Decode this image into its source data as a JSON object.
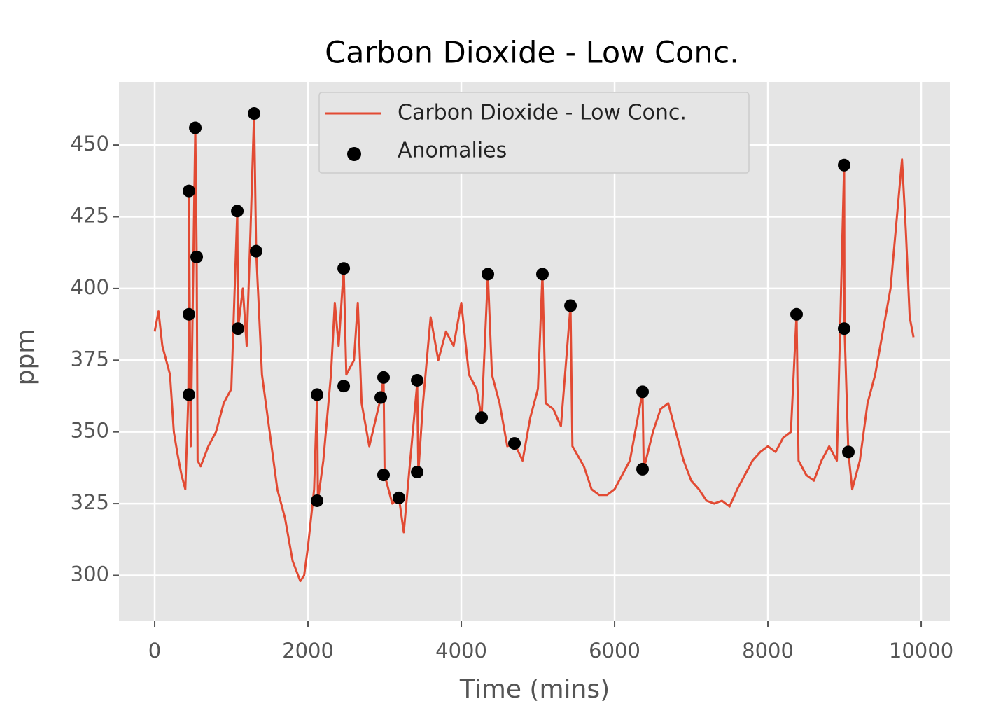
{
  "chart_data": {
    "type": "line",
    "title": "Carbon Dioxide - Low Conc.",
    "x_label": "Time (mins)",
    "y_label": "ppm",
    "xlim": [
      -466,
      10374
    ],
    "ylim": [
      284,
      472
    ],
    "xticks": [
      0,
      2000,
      4000,
      6000,
      8000,
      10000
    ],
    "yticks": [
      300,
      325,
      350,
      375,
      400,
      425,
      450
    ],
    "grid": true,
    "legend": "upper center",
    "series": [
      {
        "name": "Carbon Dioxide - Low Conc.",
        "type": "line",
        "color": "#E24A33",
        "x": [
          0,
          50,
          100,
          200,
          250,
          300,
          350,
          400,
          440,
          445,
          447,
          470,
          530,
          548,
          560,
          600,
          700,
          800,
          900,
          1000,
          1078,
          1087,
          1150,
          1200,
          1250,
          1297,
          1324,
          1400,
          1500,
          1600,
          1700,
          1800,
          1900,
          1950,
          2000,
          2080,
          2119,
          2130,
          2200,
          2300,
          2350,
          2400,
          2466,
          2500,
          2600,
          2650,
          2700,
          2800,
          2950,
          2986,
          3000,
          3100,
          3187,
          3250,
          3300,
          3425,
          3440,
          3500,
          3600,
          3700,
          3800,
          3900,
          4000,
          4100,
          4200,
          4265,
          4347,
          4400,
          4500,
          4600,
          4694,
          4800,
          4900,
          5000,
          5059,
          5100,
          5200,
          5300,
          5425,
          5450,
          5600,
          5700,
          5800,
          5900,
          6000,
          6100,
          6200,
          6365,
          6380,
          6500,
          6600,
          6700,
          6800,
          6900,
          7000,
          7100,
          7200,
          7300,
          7400,
          7500,
          7600,
          7700,
          7800,
          7900,
          8000,
          8100,
          8200,
          8300,
          8374,
          8400,
          8500,
          8600,
          8700,
          8800,
          8900,
          8995,
          9000,
          9050,
          9100,
          9200,
          9300,
          9400,
          9500,
          9600,
          9700,
          9750,
          9800,
          9850,
          9900
        ],
        "values": [
          385,
          392,
          380,
          370,
          350,
          342,
          335,
          330,
          363,
          391,
          434,
          345,
          456,
          411,
          340,
          338,
          345,
          350,
          360,
          365,
          427,
          386,
          400,
          380,
          420,
          461,
          413,
          370,
          350,
          330,
          320,
          305,
          298,
          300,
          310,
          330,
          363,
          326,
          340,
          370,
          395,
          380,
          407,
          370,
          375,
          395,
          360,
          345,
          362,
          369,
          335,
          325,
          327,
          315,
          330,
          367,
          336,
          360,
          390,
          375,
          385,
          380,
          395,
          370,
          365,
          355,
          405,
          370,
          360,
          345,
          346,
          340,
          355,
          365,
          405,
          360,
          358,
          352,
          394,
          345,
          338,
          330,
          328,
          328,
          330,
          335,
          340,
          364,
          337,
          350,
          358,
          360,
          350,
          340,
          333,
          330,
          326,
          325,
          326,
          324,
          330,
          335,
          340,
          343,
          345,
          343,
          348,
          350,
          391,
          340,
          335,
          333,
          340,
          345,
          340,
          443,
          386,
          343,
          330,
          340,
          360,
          370,
          385,
          400,
          430,
          445,
          420,
          390,
          383
        ]
      },
      {
        "name": "Anomalies",
        "type": "scatter",
        "color": "#000000",
        "x": [
          530,
          447,
          548,
          447,
          447,
          1078,
          1087,
          1297,
          1324,
          2119,
          2119,
          2466,
          2466,
          2986,
          2950,
          2986,
          3425,
          3425,
          3187,
          4347,
          4265,
          5059,
          4694,
          5425,
          6365,
          6365,
          8374,
          8995,
          8995,
          9050
        ],
        "values": [
          456,
          434,
          411,
          391,
          363,
          427,
          386,
          461,
          413,
          363,
          326,
          407,
          366,
          369,
          362,
          335,
          368,
          336,
          327,
          405,
          355,
          405,
          346,
          394,
          364,
          337,
          391,
          443,
          386,
          343
        ]
      }
    ]
  }
}
